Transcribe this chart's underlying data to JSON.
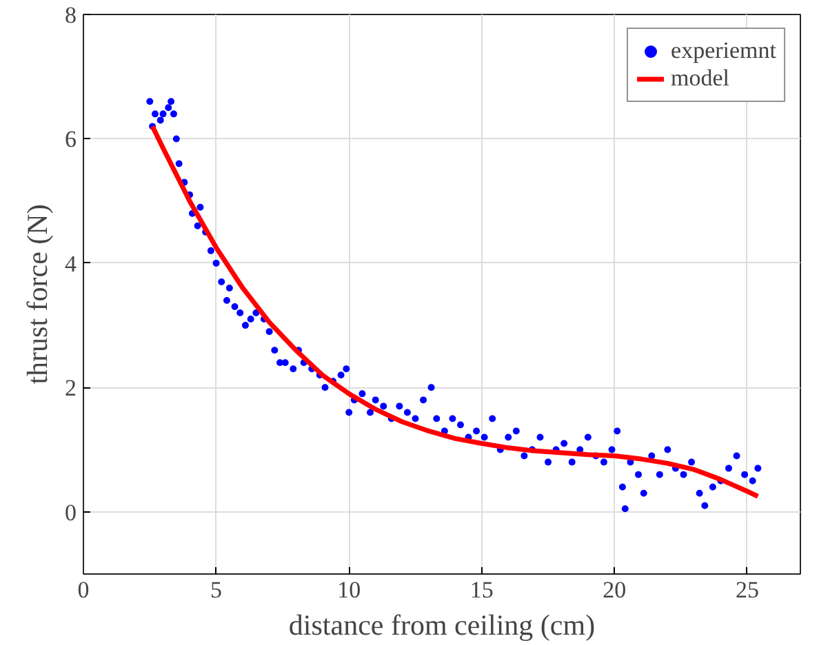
{
  "chart_data": {
    "type": "scatter",
    "xlabel": "distance from ceiling (cm)",
    "ylabel": "thrust force (N)",
    "xlim": [
      0,
      27
    ],
    "ylim": [
      -1,
      8
    ],
    "xticks": [
      0,
      5,
      10,
      15,
      20,
      25
    ],
    "yticks": [
      0,
      2,
      4,
      6,
      8
    ],
    "grid": true,
    "legend": "top right",
    "series": [
      {
        "name": "experiemnt",
        "color": "#0000ff",
        "marker": "circle",
        "x": [
          2.5,
          2.6,
          2.7,
          2.9,
          3.0,
          3.2,
          3.3,
          3.4,
          3.5,
          3.6,
          3.8,
          4.0,
          4.1,
          4.3,
          4.4,
          4.6,
          4.8,
          5.0,
          5.2,
          5.4,
          5.5,
          5.7,
          5.9,
          6.1,
          6.3,
          6.5,
          6.8,
          7.0,
          7.2,
          7.4,
          7.6,
          7.9,
          8.1,
          8.3,
          8.6,
          8.9,
          9.1,
          9.4,
          9.7,
          9.9,
          10.0,
          10.2,
          10.5,
          10.8,
          11.0,
          11.3,
          11.6,
          11.9,
          12.2,
          12.5,
          12.8,
          13.1,
          13.3,
          13.6,
          13.9,
          14.2,
          14.5,
          14.8,
          15.1,
          15.4,
          15.7,
          16.0,
          16.3,
          16.6,
          16.9,
          17.2,
          17.5,
          17.8,
          18.1,
          18.4,
          18.7,
          19.0,
          19.3,
          19.6,
          19.9,
          20.1,
          20.3,
          20.4,
          20.6,
          20.9,
          21.1,
          21.4,
          21.7,
          22.0,
          22.3,
          22.6,
          22.9,
          23.2,
          23.4,
          23.7,
          24.0,
          24.3,
          24.6,
          24.9,
          25.2,
          25.4
        ],
        "values": [
          6.6,
          6.2,
          6.4,
          6.3,
          6.4,
          6.5,
          6.6,
          6.4,
          6.0,
          5.6,
          5.3,
          5.1,
          4.8,
          4.6,
          4.9,
          4.5,
          4.2,
          4.0,
          3.7,
          3.4,
          3.6,
          3.3,
          3.2,
          3.0,
          3.1,
          3.2,
          3.1,
          2.9,
          2.6,
          2.4,
          2.4,
          2.3,
          2.6,
          2.4,
          2.3,
          2.2,
          2.0,
          2.1,
          2.2,
          2.3,
          1.6,
          1.8,
          1.9,
          1.6,
          1.8,
          1.7,
          1.5,
          1.7,
          1.6,
          1.5,
          1.8,
          2.0,
          1.5,
          1.3,
          1.5,
          1.4,
          1.2,
          1.3,
          1.2,
          1.5,
          1.0,
          1.2,
          1.3,
          0.9,
          1.0,
          1.2,
          0.8,
          1.0,
          1.1,
          0.8,
          1.0,
          1.2,
          0.9,
          0.8,
          1.0,
          1.3,
          0.4,
          0.05,
          0.8,
          0.6,
          0.3,
          0.9,
          0.6,
          1.0,
          0.7,
          0.6,
          0.8,
          0.3,
          0.1,
          0.4,
          0.5,
          0.7,
          0.9,
          0.6,
          0.5,
          0.7
        ]
      },
      {
        "name": "model",
        "color": "#ff0000",
        "type": "line",
        "x": [
          2.6,
          3,
          4,
          5,
          6,
          7,
          8,
          9,
          10,
          11,
          12,
          13,
          14,
          15,
          16,
          17,
          18,
          19,
          20,
          21,
          22,
          23,
          24,
          25,
          25.4
        ],
        "values": [
          6.2,
          5.85,
          5.0,
          4.25,
          3.6,
          3.05,
          2.6,
          2.2,
          1.9,
          1.65,
          1.45,
          1.3,
          1.18,
          1.1,
          1.03,
          0.98,
          0.95,
          0.92,
          0.9,
          0.85,
          0.78,
          0.68,
          0.52,
          0.33,
          0.25
        ]
      }
    ]
  }
}
